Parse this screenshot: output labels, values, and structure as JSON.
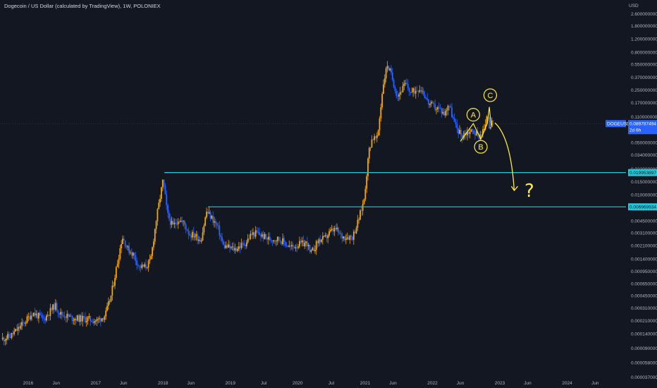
{
  "chart_data": {
    "type": "candlestick",
    "title": "Dogecoin / US Dollar (calculated by TradingView), 1W, POLONIEX",
    "symbol": "DOGEUSD",
    "currency": "USD",
    "y_scale": "log",
    "ylim": [
      3.7e-05,
      4.0
    ],
    "y_ticks": [
      "2.600000000",
      "1.800000000",
      "1.200000000",
      "0.800000000",
      "0.550000000",
      "0.370000000",
      "0.250000000",
      "0.170000000",
      "0.110000000",
      "0.050000000",
      "0.034000000",
      "0.022000000",
      "0.015000000",
      "0.010000000",
      "0.006500000",
      "0.004500000",
      "0.003100000",
      "0.002100000",
      "0.001400000",
      "0.000950000",
      "0.000650000",
      "0.000450000",
      "0.000310000",
      "0.000210000",
      "0.000140000",
      "0.000090000",
      "0.000058000",
      "0.000037000"
    ],
    "x_ticks": [
      "2016",
      "Jun",
      "2017",
      "Jun",
      "2018",
      "Jun",
      "2019",
      "Jul",
      "2020",
      "Jul",
      "2021",
      "Jun",
      "2022",
      "Jun",
      "2023",
      "Jun",
      "2024",
      "Jun"
    ],
    "x_tick_dates": [
      "2016-01-01",
      "2016-06-01",
      "2017-01-01",
      "2017-06-01",
      "2018-01-01",
      "2018-06-01",
      "2019-01-01",
      "2019-07-01",
      "2020-01-01",
      "2020-07-01",
      "2021-01-01",
      "2021-06-01",
      "2022-01-01",
      "2022-06-01",
      "2023-01-01",
      "2023-06-01",
      "2024-01-01",
      "2024-06-01"
    ],
    "x_range": [
      "2015-08-01",
      "2024-11-15"
    ],
    "price_path": [
      [
        "2015-08-15",
        0.00012
      ],
      [
        "2015-10-01",
        0.00013
      ],
      [
        "2015-12-01",
        0.00018
      ],
      [
        "2016-01-01",
        0.00022
      ],
      [
        "2016-02-01",
        0.00027
      ],
      [
        "2016-04-01",
        0.00022
      ],
      [
        "2016-06-01",
        0.00034
      ],
      [
        "2016-07-01",
        0.00026
      ],
      [
        "2016-09-01",
        0.00023
      ],
      [
        "2016-12-01",
        0.00022
      ],
      [
        "2017-01-15",
        0.00021
      ],
      [
        "2017-03-01",
        0.00025
      ],
      [
        "2017-04-01",
        0.00045
      ],
      [
        "2017-05-01",
        0.0011
      ],
      [
        "2017-06-01",
        0.0028
      ],
      [
        "2017-07-01",
        0.0019
      ],
      [
        "2017-08-01",
        0.0016
      ],
      [
        "2017-09-01",
        0.0011
      ],
      [
        "2017-10-01",
        0.0011
      ],
      [
        "2017-11-01",
        0.0013
      ],
      [
        "2017-12-01",
        0.0045
      ],
      [
        "2018-01-08",
        0.016
      ],
      [
        "2018-02-01",
        0.0055
      ],
      [
        "2018-03-01",
        0.0038
      ],
      [
        "2018-04-01",
        0.0048
      ],
      [
        "2018-05-01",
        0.0042
      ],
      [
        "2018-06-01",
        0.003
      ],
      [
        "2018-07-01",
        0.0029
      ],
      [
        "2018-08-01",
        0.0025
      ],
      [
        "2018-09-01",
        0.006
      ],
      [
        "2018-10-01",
        0.0049
      ],
      [
        "2018-11-01",
        0.0037
      ],
      [
        "2018-12-01",
        0.0021
      ],
      [
        "2019-02-01",
        0.0019
      ],
      [
        "2019-04-01",
        0.0023
      ],
      [
        "2019-05-01",
        0.003
      ],
      [
        "2019-06-01",
        0.0031
      ],
      [
        "2019-08-01",
        0.0026
      ],
      [
        "2019-10-01",
        0.0026
      ],
      [
        "2019-12-01",
        0.002
      ],
      [
        "2020-01-15",
        0.0022
      ],
      [
        "2020-03-01",
        0.0023
      ],
      [
        "2020-03-16",
        0.0016
      ],
      [
        "2020-05-01",
        0.0025
      ],
      [
        "2020-06-01",
        0.0026
      ],
      [
        "2020-07-01",
        0.0032
      ],
      [
        "2020-08-01",
        0.0035
      ],
      [
        "2020-09-01",
        0.0028
      ],
      [
        "2020-11-01",
        0.0028
      ],
      [
        "2020-12-01",
        0.0045
      ],
      [
        "2021-01-01",
        0.0085
      ],
      [
        "2021-01-29",
        0.04
      ],
      [
        "2021-02-15",
        0.058
      ],
      [
        "2021-03-15",
        0.056
      ],
      [
        "2021-04-15",
        0.3
      ],
      [
        "2021-05-08",
        0.55
      ],
      [
        "2021-06-01",
        0.38
      ],
      [
        "2021-07-01",
        0.21
      ],
      [
        "2021-08-15",
        0.3
      ],
      [
        "2021-09-15",
        0.23
      ],
      [
        "2021-10-28",
        0.27
      ],
      [
        "2021-11-15",
        0.25
      ],
      [
        "2021-12-15",
        0.17
      ],
      [
        "2022-01-15",
        0.15
      ],
      [
        "2022-02-15",
        0.14
      ],
      [
        "2022-03-15",
        0.12
      ],
      [
        "2022-04-05",
        0.17
      ],
      [
        "2022-05-10",
        0.085
      ],
      [
        "2022-06-15",
        0.062
      ],
      [
        "2022-07-15",
        0.069
      ],
      [
        "2022-08-15",
        0.072
      ],
      [
        "2022-09-15",
        0.061
      ],
      [
        "2022-10-25",
        0.083
      ],
      [
        "2022-11-01",
        0.15
      ],
      [
        "2022-11-10",
        0.085
      ],
      [
        "2022-11-28",
        0.09
      ]
    ],
    "current_price": {
      "label": "DOGEUSD",
      "value": "0.089787494",
      "countdown": "2d 6h"
    },
    "horizontal_levels": [
      {
        "value": "0.019953897",
        "start": "2018-01-08"
      },
      {
        "value": "0.006969934",
        "start": "2018-09-01"
      }
    ],
    "annotations": [
      {
        "text": "A",
        "date": "2022-08-10",
        "price": 0.118
      },
      {
        "text": "B",
        "date": "2022-09-20",
        "price": 0.044
      },
      {
        "text": "C",
        "date": "2022-11-10",
        "price": 0.215
      },
      {
        "text": "?",
        "date": "2023-06-10",
        "price": 0.0095
      }
    ],
    "colors": {
      "background": "#131722",
      "up": "#f7a600",
      "down": "#2962ff",
      "level": "#26c6da",
      "annotation": "#ffeb3b",
      "price_tag": "#2962ff",
      "grid_text": "#b2b5be"
    }
  }
}
